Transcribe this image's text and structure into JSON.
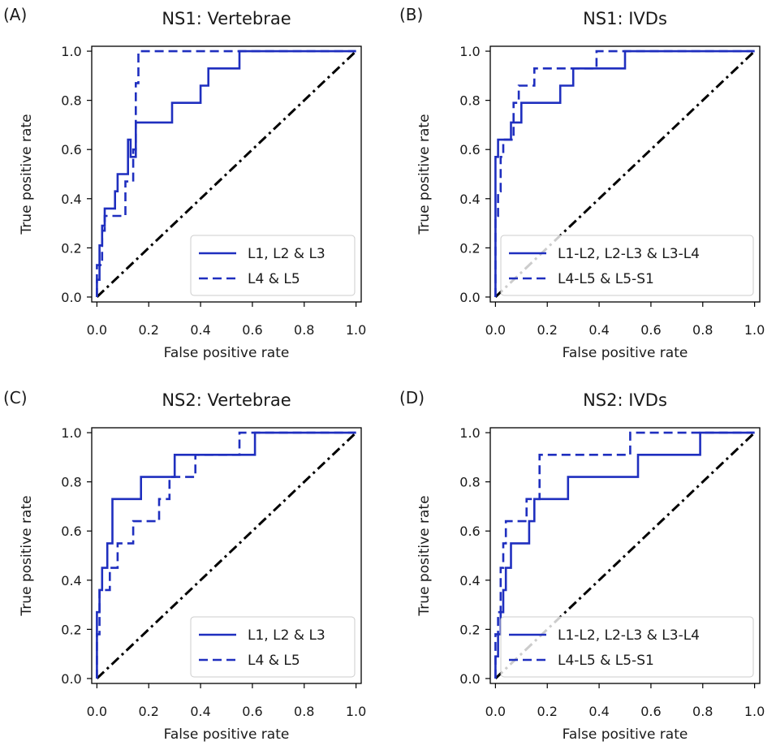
{
  "chart_data": [
    {
      "type": "line",
      "panel_label": "(A)",
      "title": "NS1: Vertebrae",
      "xlabel": "False positive rate",
      "ylabel": "True positive rate",
      "xlim": [
        0,
        1
      ],
      "ylim": [
        0,
        1
      ],
      "xticks": [
        "0.0",
        "0.2",
        "0.4",
        "0.6",
        "0.8",
        "1.0"
      ],
      "yticks": [
        "0.0",
        "0.2",
        "0.4",
        "0.6",
        "0.8",
        "1.0"
      ],
      "legend_position": "lower-right",
      "series": [
        {
          "name": "L1, L2 & L3",
          "style": "solid",
          "color": "#1f2fbf",
          "x": [
            0.0,
            0.0,
            0.01,
            0.01,
            0.02,
            0.02,
            0.03,
            0.03,
            0.07,
            0.07,
            0.08,
            0.08,
            0.12,
            0.12,
            0.13,
            0.13,
            0.15,
            0.15,
            0.29,
            0.29,
            0.4,
            0.4,
            0.43,
            0.43,
            0.55,
            0.55,
            1.0
          ],
          "y": [
            0.0,
            0.07,
            0.07,
            0.21,
            0.21,
            0.29,
            0.29,
            0.36,
            0.36,
            0.43,
            0.43,
            0.5,
            0.5,
            0.64,
            0.64,
            0.57,
            0.57,
            0.71,
            0.71,
            0.79,
            0.79,
            0.86,
            0.86,
            0.93,
            0.93,
            1.0,
            1.0
          ]
        },
        {
          "name": "L4 & L5",
          "style": "dashed",
          "color": "#1f2fbf",
          "x": [
            0.0,
            0.0,
            0.02,
            0.02,
            0.03,
            0.03,
            0.11,
            0.11,
            0.14,
            0.14,
            0.15,
            0.15,
            0.16,
            0.16,
            0.55,
            0.55,
            1.0
          ],
          "y": [
            0.0,
            0.13,
            0.13,
            0.27,
            0.27,
            0.33,
            0.33,
            0.47,
            0.47,
            0.6,
            0.6,
            0.87,
            0.87,
            1.0,
            1.0,
            1.0,
            1.0
          ]
        },
        {
          "name": "",
          "style": "dashdot",
          "color": "#000000",
          "x": [
            0,
            1
          ],
          "y": [
            0,
            1
          ]
        }
      ]
    },
    {
      "type": "line",
      "panel_label": "(B)",
      "title": "NS1: IVDs",
      "xlabel": "False positive rate",
      "ylabel": "True positive rate",
      "xlim": [
        0,
        1
      ],
      "ylim": [
        0,
        1
      ],
      "xticks": [
        "0.0",
        "0.2",
        "0.4",
        "0.6",
        "0.8",
        "1.0"
      ],
      "yticks": [
        "0.0",
        "0.2",
        "0.4",
        "0.6",
        "0.8",
        "1.0"
      ],
      "legend_position": "lower-right",
      "series": [
        {
          "name": "L1-L2, L2-L3 & L3-L4",
          "style": "solid",
          "color": "#1f2fbf",
          "x": [
            0.0,
            0.0,
            0.01,
            0.01,
            0.03,
            0.03,
            0.06,
            0.06,
            0.08,
            0.08,
            0.1,
            0.1,
            0.25,
            0.25,
            0.3,
            0.3,
            0.5,
            0.5,
            1.0
          ],
          "y": [
            0.0,
            0.57,
            0.57,
            0.64,
            0.64,
            0.64,
            0.64,
            0.71,
            0.71,
            0.71,
            0.71,
            0.79,
            0.79,
            0.86,
            0.86,
            0.93,
            0.93,
            1.0,
            1.0
          ]
        },
        {
          "name": "L4-L5 & L5-S1",
          "style": "dashed",
          "color": "#1f2fbf",
          "x": [
            0.0,
            0.0,
            0.01,
            0.01,
            0.02,
            0.02,
            0.03,
            0.03,
            0.07,
            0.07,
            0.09,
            0.09,
            0.12,
            0.12,
            0.15,
            0.15,
            0.39,
            0.39,
            1.0
          ],
          "y": [
            0.0,
            0.33,
            0.33,
            0.43,
            0.43,
            0.57,
            0.57,
            0.64,
            0.64,
            0.79,
            0.79,
            0.86,
            0.86,
            0.86,
            0.86,
            0.93,
            0.93,
            1.0,
            1.0
          ]
        },
        {
          "name": "",
          "style": "dashdot",
          "color": "#000000",
          "x": [
            0,
            1
          ],
          "y": [
            0,
            1
          ]
        }
      ]
    },
    {
      "type": "line",
      "panel_label": "(C)",
      "title": "NS2: Vertebrae",
      "xlabel": "False positive rate",
      "ylabel": "True positive rate",
      "xlim": [
        0,
        1
      ],
      "ylim": [
        0,
        1
      ],
      "xticks": [
        "0.0",
        "0.2",
        "0.4",
        "0.6",
        "0.8",
        "1.0"
      ],
      "yticks": [
        "0.0",
        "0.2",
        "0.4",
        "0.6",
        "0.8",
        "1.0"
      ],
      "legend_position": "lower-right",
      "series": [
        {
          "name": "L1, L2 & L3",
          "style": "solid",
          "color": "#1f2fbf",
          "x": [
            0.0,
            0.0,
            0.01,
            0.01,
            0.02,
            0.02,
            0.04,
            0.04,
            0.06,
            0.06,
            0.17,
            0.17,
            0.3,
            0.3,
            0.61,
            0.61,
            1.0
          ],
          "y": [
            0.0,
            0.27,
            0.27,
            0.36,
            0.36,
            0.45,
            0.45,
            0.55,
            0.55,
            0.73,
            0.73,
            0.82,
            0.82,
            0.91,
            0.91,
            1.0,
            1.0
          ]
        },
        {
          "name": "L4 & L5",
          "style": "dashed",
          "color": "#1f2fbf",
          "x": [
            0.0,
            0.0,
            0.01,
            0.01,
            0.05,
            0.05,
            0.08,
            0.08,
            0.14,
            0.14,
            0.24,
            0.24,
            0.28,
            0.28,
            0.36,
            0.36,
            0.38,
            0.38,
            0.55,
            0.55,
            1.0
          ],
          "y": [
            0.0,
            0.18,
            0.18,
            0.36,
            0.36,
            0.45,
            0.45,
            0.55,
            0.55,
            0.64,
            0.64,
            0.73,
            0.73,
            0.82,
            0.82,
            0.82,
            0.82,
            0.91,
            0.91,
            1.0,
            1.0
          ]
        },
        {
          "name": "",
          "style": "dashdot",
          "color": "#000000",
          "x": [
            0,
            1
          ],
          "y": [
            0,
            1
          ]
        }
      ]
    },
    {
      "type": "line",
      "panel_label": "(D)",
      "title": "NS2: IVDs",
      "xlabel": "False positive rate",
      "ylabel": "True positive rate",
      "xlim": [
        0,
        1
      ],
      "ylim": [
        0,
        1
      ],
      "xticks": [
        "0.0",
        "0.2",
        "0.4",
        "0.6",
        "0.8",
        "1.0"
      ],
      "yticks": [
        "0.0",
        "0.2",
        "0.4",
        "0.6",
        "0.8",
        "1.0"
      ],
      "legend_position": "lower-right",
      "series": [
        {
          "name": "L1-L2, L2-L3 & L3-L4",
          "style": "solid",
          "color": "#1f2fbf",
          "x": [
            0.0,
            0.0,
            0.01,
            0.01,
            0.02,
            0.02,
            0.03,
            0.03,
            0.04,
            0.04,
            0.06,
            0.06,
            0.13,
            0.13,
            0.15,
            0.15,
            0.19,
            0.19,
            0.28,
            0.28,
            0.55,
            0.55,
            0.79,
            0.79,
            1.0
          ],
          "y": [
            0.0,
            0.09,
            0.09,
            0.18,
            0.18,
            0.27,
            0.27,
            0.36,
            0.36,
            0.45,
            0.45,
            0.55,
            0.55,
            0.64,
            0.64,
            0.73,
            0.73,
            0.73,
            0.73,
            0.82,
            0.82,
            0.91,
            0.91,
            1.0,
            1.0
          ]
        },
        {
          "name": "L4-L5 & L5-S1",
          "style": "dashed",
          "color": "#1f2fbf",
          "x": [
            0.0,
            0.0,
            0.01,
            0.01,
            0.02,
            0.02,
            0.03,
            0.03,
            0.04,
            0.04,
            0.12,
            0.12,
            0.17,
            0.17,
            0.52,
            0.52,
            1.0
          ],
          "y": [
            0.0,
            0.18,
            0.18,
            0.27,
            0.27,
            0.45,
            0.45,
            0.55,
            0.55,
            0.64,
            0.64,
            0.73,
            0.73,
            0.91,
            0.91,
            1.0,
            1.0
          ]
        },
        {
          "name": "",
          "style": "dashdot",
          "color": "#000000",
          "x": [
            0,
            1
          ],
          "y": [
            0,
            1
          ]
        }
      ]
    }
  ]
}
